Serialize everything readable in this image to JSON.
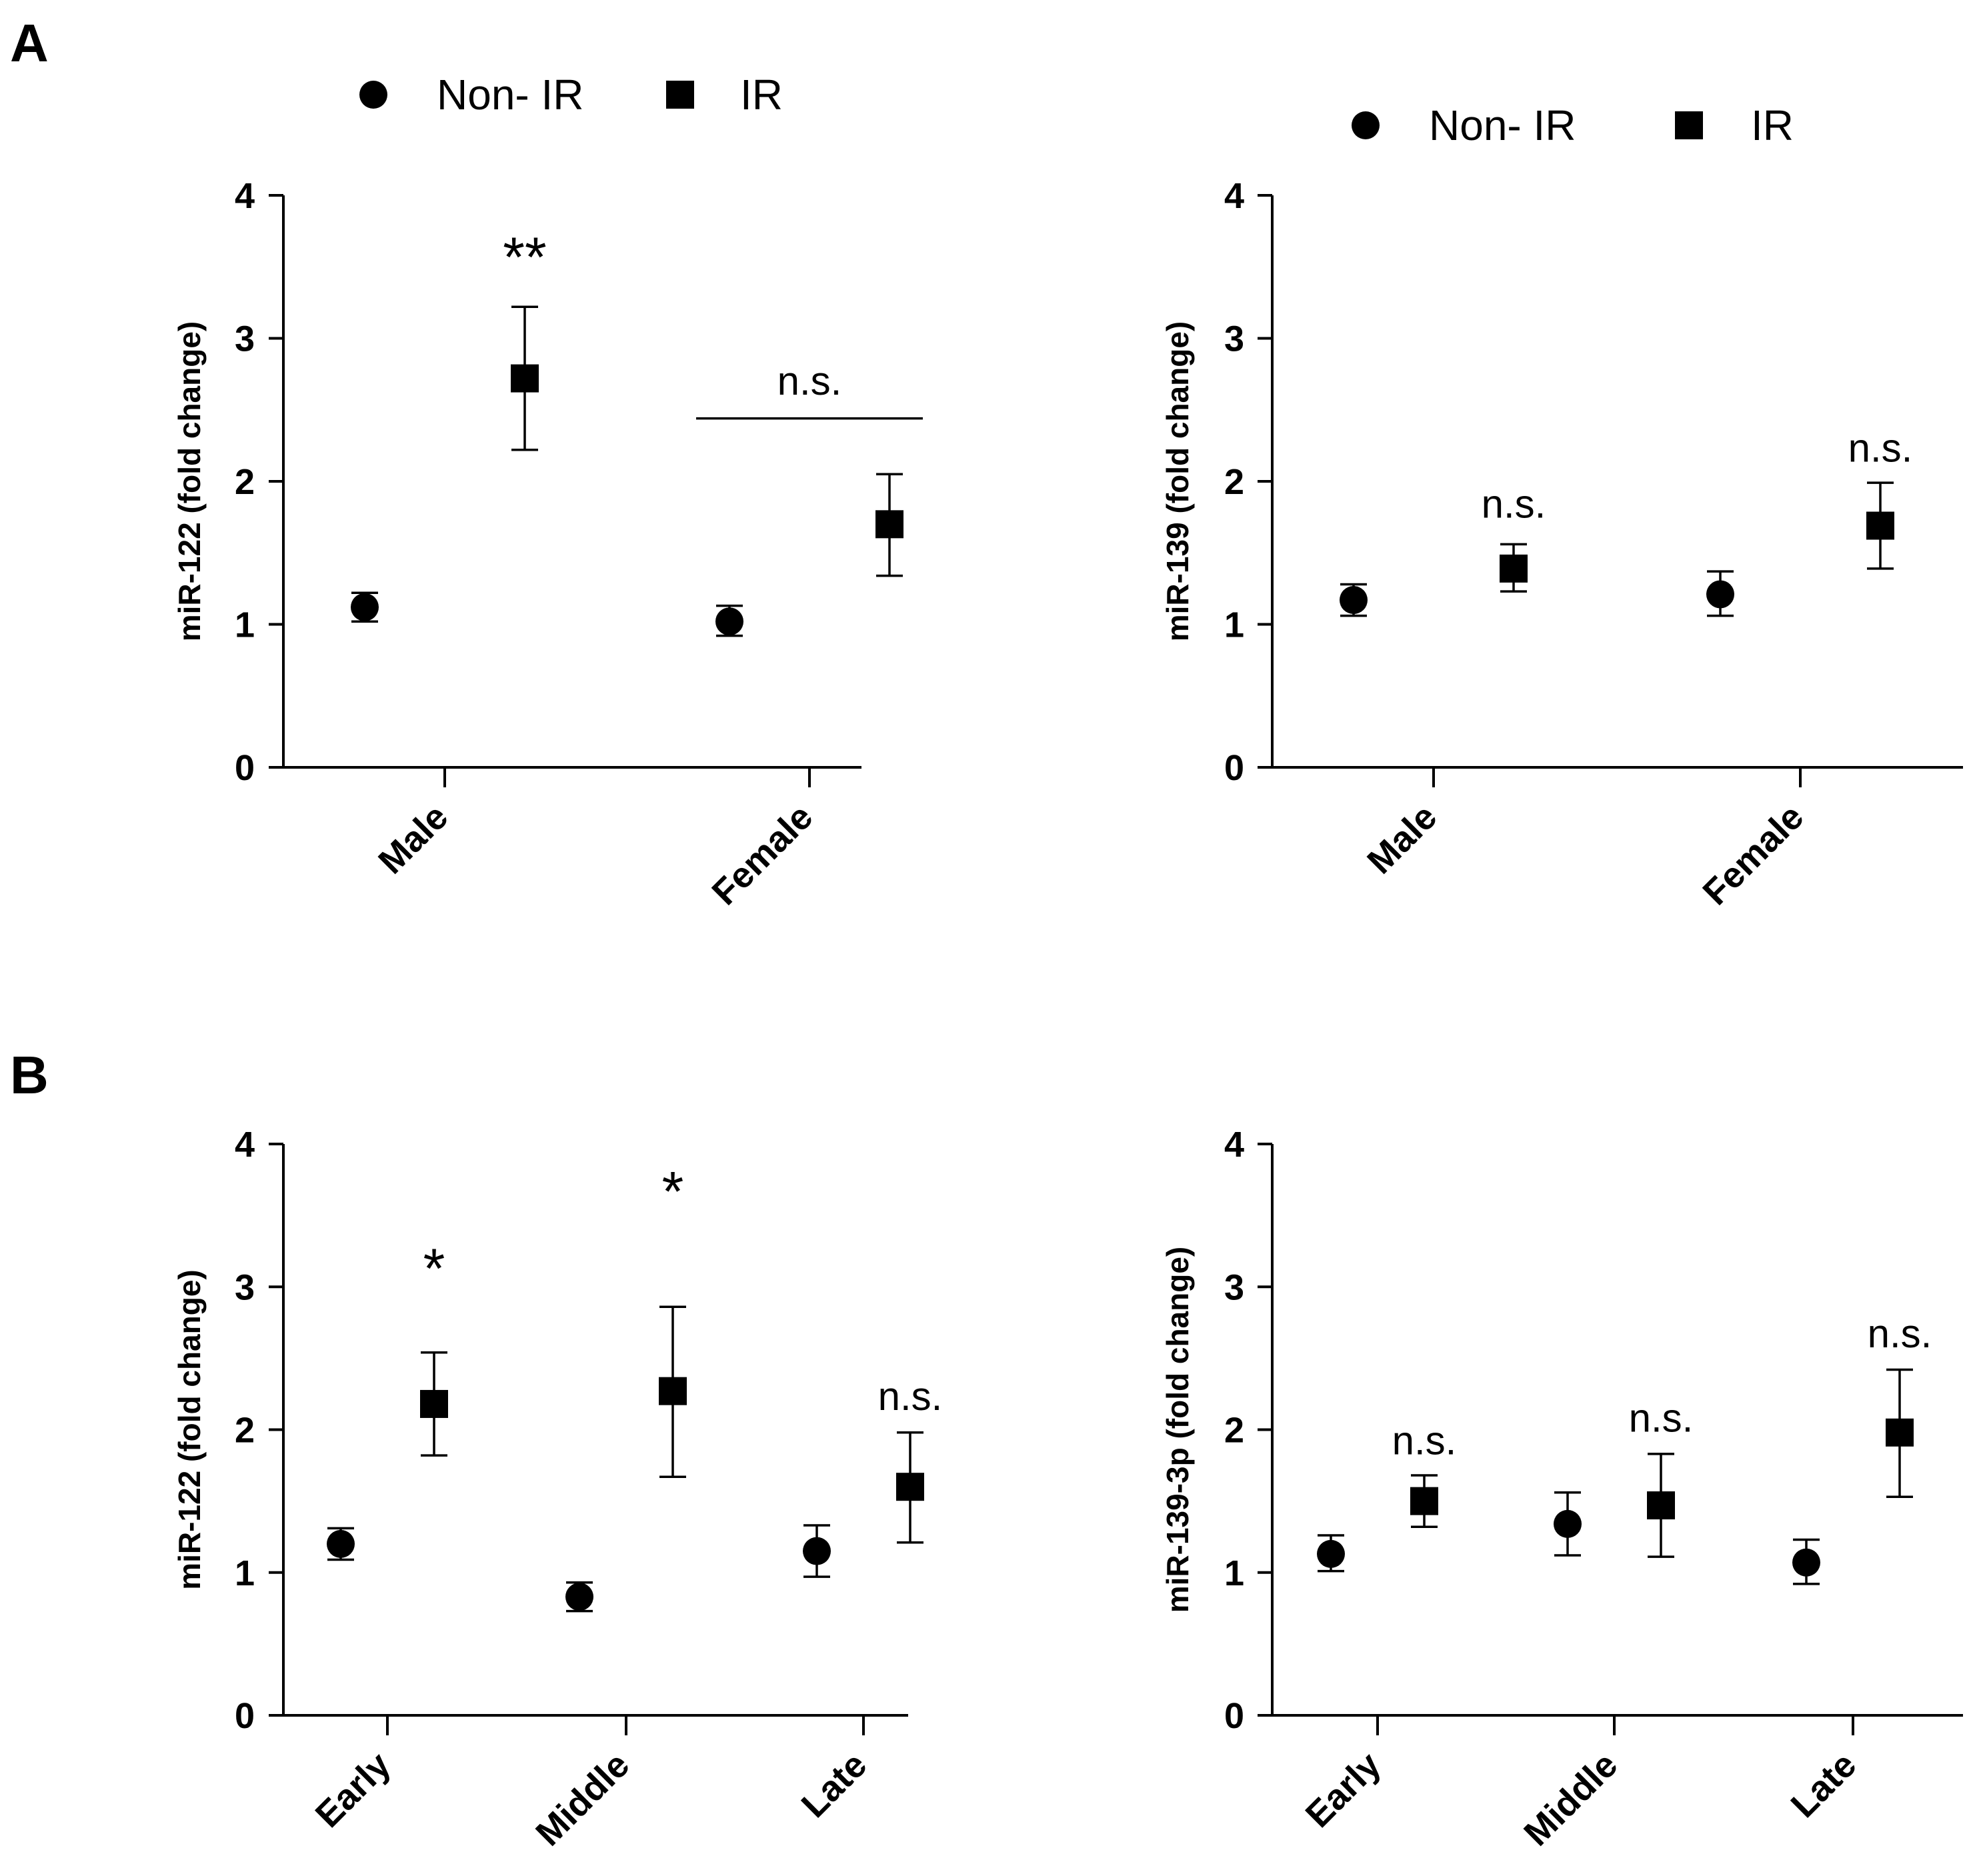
{
  "panel_labels": [
    "A",
    "B"
  ],
  "legend": {
    "items": [
      {
        "label": "Non- IR",
        "marker": "circle"
      },
      {
        "label": "IR",
        "marker": "square"
      }
    ]
  },
  "colors": {
    "ink": "#000000",
    "background": "#ffffff"
  },
  "chart_data": [
    {
      "type": "scatter",
      "panel": "A",
      "ylabel": "miR-122 (fold change)",
      "ylim": [
        0,
        4
      ],
      "yticks": [
        "0",
        "1",
        "2",
        "3",
        "4"
      ],
      "categories": [
        "Male",
        "Female"
      ],
      "series": [
        {
          "name": "Non- IR",
          "marker": "circle",
          "values": [
            1.12,
            1.02
          ],
          "err_low": [
            1.02,
            0.92
          ],
          "err_high": [
            1.22,
            1.13
          ]
        },
        {
          "name": "IR",
          "marker": "square",
          "values": [
            2.72,
            1.7
          ],
          "err_low": [
            2.22,
            1.34
          ],
          "err_high": [
            3.22,
            2.05
          ]
        }
      ],
      "annotations": [
        {
          "text": "**",
          "category": 0,
          "y": 3.62,
          "size": "big"
        },
        {
          "text": "n.s.",
          "category": 1,
          "y": 2.7,
          "bracket_y": 2.44
        }
      ]
    },
    {
      "type": "scatter",
      "panel": "A",
      "ylabel": "miR-139 (fold change)",
      "ylim": [
        0,
        4
      ],
      "yticks": [
        "0",
        "1",
        "2",
        "3",
        "4"
      ],
      "categories": [
        "Male",
        "Female"
      ],
      "series": [
        {
          "name": "Non- IR",
          "marker": "circle",
          "values": [
            1.17,
            1.21
          ],
          "err_low": [
            1.06,
            1.06
          ],
          "err_high": [
            1.28,
            1.37
          ]
        },
        {
          "name": "IR",
          "marker": "square",
          "values": [
            1.39,
            1.69
          ],
          "err_low": [
            1.23,
            1.39
          ],
          "err_high": [
            1.56,
            1.99
          ]
        }
      ],
      "annotations": [
        {
          "text": "n.s.",
          "category": 0,
          "y": 1.84,
          "series": 1
        },
        {
          "text": "n.s.",
          "category": 1,
          "y": 2.23,
          "series": 1
        }
      ]
    },
    {
      "type": "scatter",
      "panel": "B",
      "ylabel": "miR-122 (fold change)",
      "ylim": [
        0,
        4
      ],
      "yticks": [
        "0",
        "1",
        "2",
        "3",
        "4"
      ],
      "categories": [
        "Early",
        "Middle",
        "Late"
      ],
      "series": [
        {
          "name": "Non- IR",
          "marker": "circle",
          "values": [
            1.2,
            0.83,
            1.15
          ],
          "err_low": [
            1.09,
            0.73,
            0.97
          ],
          "err_high": [
            1.31,
            0.93,
            1.33
          ]
        },
        {
          "name": "IR",
          "marker": "square",
          "values": [
            2.18,
            2.27,
            1.6
          ],
          "err_low": [
            1.82,
            1.67,
            1.21
          ],
          "err_high": [
            2.54,
            2.86,
            1.98
          ]
        }
      ],
      "annotations": [
        {
          "text": "*",
          "category": 0,
          "y": 3.18,
          "series": 1,
          "size": "big"
        },
        {
          "text": "*",
          "category": 1,
          "y": 3.72,
          "series": 1,
          "size": "big"
        },
        {
          "text": "n.s.",
          "category": 2,
          "y": 2.23,
          "series": 1
        }
      ]
    },
    {
      "type": "scatter",
      "panel": "B",
      "ylabel": "miR-139-3p (fold change)",
      "ylim": [
        0,
        4
      ],
      "yticks": [
        "0",
        "1",
        "2",
        "3",
        "4"
      ],
      "categories": [
        "Early",
        "Middle",
        "Late"
      ],
      "series": [
        {
          "name": "Non- IR",
          "marker": "circle",
          "values": [
            1.13,
            1.34,
            1.07
          ],
          "err_low": [
            1.01,
            1.12,
            0.92
          ],
          "err_high": [
            1.26,
            1.56,
            1.23
          ]
        },
        {
          "name": "IR",
          "marker": "square",
          "values": [
            1.5,
            1.47,
            1.98
          ],
          "err_low": [
            1.32,
            1.11,
            1.53
          ],
          "err_high": [
            1.68,
            1.83,
            2.42
          ]
        }
      ],
      "annotations": [
        {
          "text": "n.s.",
          "category": 0,
          "y": 1.92,
          "series": 1
        },
        {
          "text": "n.s.",
          "category": 1,
          "y": 2.08,
          "series": 1
        },
        {
          "text": "n.s.",
          "category": 2,
          "y": 2.67,
          "series": 1
        }
      ]
    }
  ]
}
